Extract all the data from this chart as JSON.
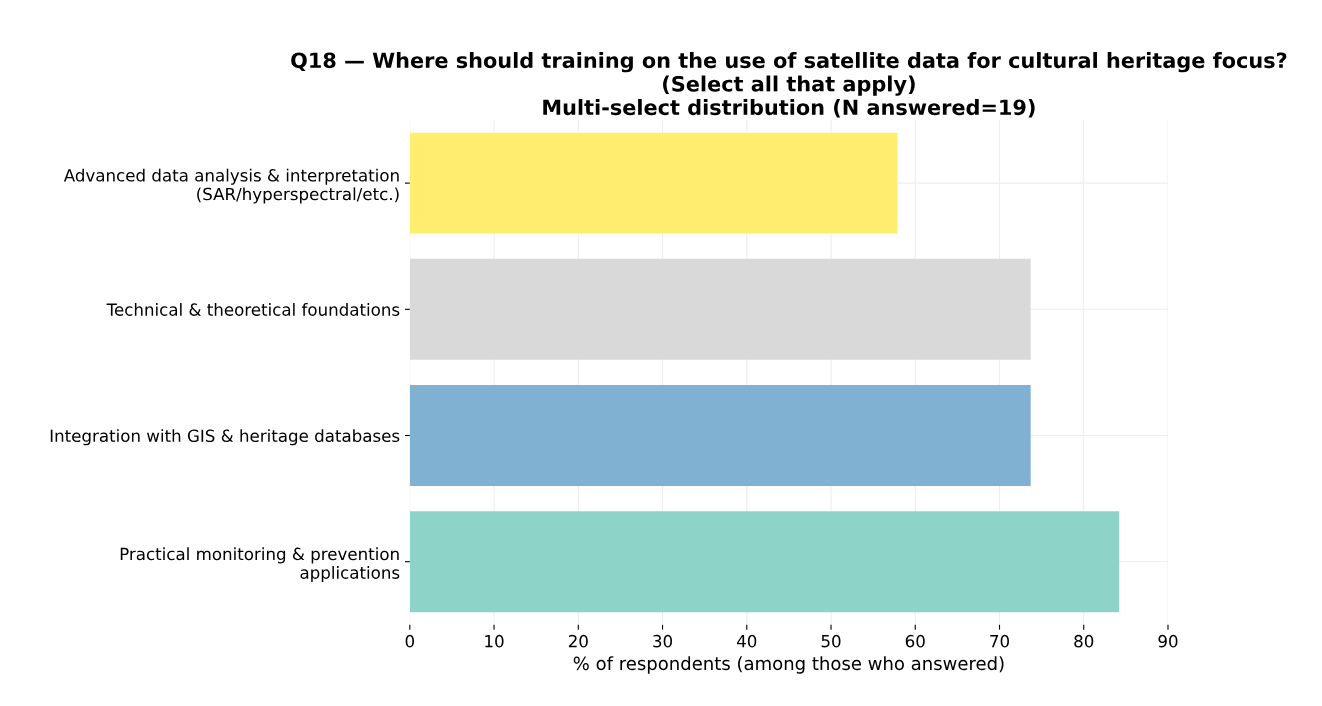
{
  "chart_data": {
    "type": "bar",
    "orientation": "horizontal",
    "title": "Q18 — Where should training on the use of satellite data for cultural heritage focus? (Select all that apply)\nMulti-select distribution (N answered=19)",
    "xlabel": "% of respondents (among those who answered)",
    "categories": [
      "Advanced data analysis & interpretation\n(SAR/hyperspectral/etc.)",
      "Technical & theoretical foundations",
      "Integration with GIS & heritage databases",
      "Practical monitoring & prevention\napplications"
    ],
    "values": [
      57.9,
      73.7,
      73.7,
      84.2
    ],
    "colors": [
      "#ffed6f",
      "#d9d9d9",
      "#80b1d3",
      "#8dd3c7"
    ],
    "xlim": [
      0,
      90
    ],
    "xticks": [
      0,
      10,
      20,
      30,
      40,
      50,
      60,
      70,
      80,
      90
    ],
    "grid": true
  }
}
